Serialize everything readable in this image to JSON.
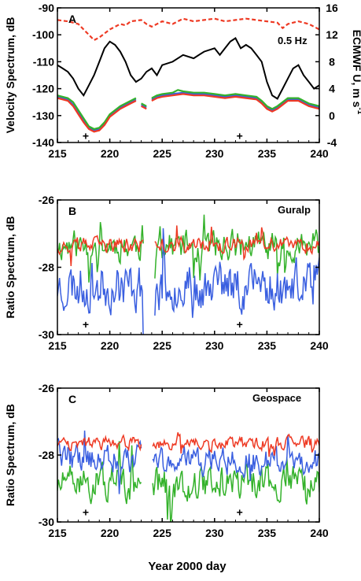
{
  "colors": {
    "red": "#ee3a24",
    "blue": "#3a5fe0",
    "green": "#34b22b",
    "black": "#000000"
  },
  "chart_data": [
    {
      "type": "line",
      "panel": "A",
      "ylabel": "Velocity Spectrum, dB",
      "y2label_main": "ECMWF U, m s",
      "y2label_sup": "-1",
      "annotation": "0.5 Hz",
      "xlim": [
        215,
        240
      ],
      "ylim": [
        -140,
        -90
      ],
      "y2lim": [
        -4,
        16
      ],
      "xticks": [
        215,
        220,
        225,
        230,
        235,
        240
      ],
      "yticks": [
        -140,
        -130,
        -120,
        -110,
        -100,
        -90
      ],
      "y2ticks": [
        -4,
        0,
        4,
        8,
        12,
        16
      ],
      "markers": [
        [
          217.7,
          -137.5
        ],
        [
          232.4,
          -137.5
        ]
      ],
      "marker_glyph": "+",
      "series": [
        {
          "color": "red",
          "dashed": true,
          "axis": "left",
          "x": [
            215,
            216,
            217,
            217.5,
            218,
            218.5,
            219,
            220,
            221,
            221.5,
            222,
            223,
            223.5,
            224,
            225,
            226,
            227,
            228,
            229,
            230,
            231,
            232,
            233,
            234,
            235,
            236,
            236.5,
            237,
            238,
            239,
            240
          ],
          "y": [
            -94.5,
            -95,
            -96,
            -98,
            -100,
            -102,
            -101,
            -98,
            -96,
            -96.5,
            -95,
            -94.5,
            -96,
            -97,
            -95,
            -96,
            -94,
            -95,
            -94.5,
            -94,
            -95,
            -94.5,
            -94,
            -94.5,
            -95,
            -95.5,
            -97.5,
            -96,
            -95,
            -96,
            -98
          ]
        },
        {
          "color": "black",
          "axis": "right",
          "x": [
            215,
            215.5,
            216,
            216.5,
            217,
            217.5,
            218,
            218.5,
            219,
            219.5,
            220,
            220.5,
            221,
            221.5,
            222,
            222.5,
            223,
            223.5,
            224,
            224.5,
            225,
            226,
            227,
            228,
            229,
            230,
            230.5,
            231,
            231.5,
            232,
            232.5,
            233,
            233.5,
            234,
            234.5,
            235,
            235.5,
            236,
            236.5,
            237,
            237.5,
            238,
            238.5,
            239,
            239.5,
            240
          ],
          "y": [
            7.5,
            7,
            6.5,
            5.5,
            4,
            3,
            4.5,
            6,
            8,
            10,
            11,
            10.5,
            9.5,
            8,
            6,
            5,
            5.5,
            6.5,
            7,
            6,
            7.5,
            8,
            9,
            8.5,
            9.5,
            10,
            9,
            10,
            11,
            11.5,
            10,
            10.5,
            10,
            9,
            8,
            5,
            3,
            2.5,
            4,
            5.5,
            7,
            7.5,
            6,
            5,
            4,
            4.5
          ]
        },
        {
          "color": "blue",
          "axis": "left",
          "x": [
            215,
            216,
            216.5,
            217,
            217.5,
            218,
            218.5,
            219,
            219.5,
            220,
            221,
            222,
            222.5,
            null,
            223,
            223.5,
            null,
            224,
            224.5,
            225,
            226,
            227,
            228,
            229,
            230,
            231,
            232,
            233,
            234,
            234.5,
            235,
            235.5,
            236,
            237,
            238,
            239,
            240
          ],
          "y": [
            -123,
            -124,
            -126,
            -129,
            -132,
            -134.5,
            -135.5,
            -135,
            -133,
            -130,
            -127,
            -125,
            -124,
            null,
            -126,
            -127,
            null,
            -124,
            -123,
            -122.5,
            -122,
            -121.5,
            -122,
            -122,
            -122.5,
            -123,
            -122.5,
            -123,
            -123.5,
            -125,
            -127,
            -128,
            -127,
            -124,
            -124,
            -126,
            -127
          ]
        },
        {
          "color": "green",
          "axis": "left",
          "x": [
            215,
            216,
            216.5,
            217,
            217.5,
            218,
            218.5,
            219,
            219.5,
            220,
            221,
            222,
            222.5,
            null,
            223,
            223.5,
            null,
            224,
            224.5,
            225,
            226,
            226.5,
            227,
            228,
            229,
            230,
            231,
            232,
            233,
            234,
            234.5,
            235,
            235.5,
            236,
            237,
            238,
            239,
            240
          ],
          "y": [
            -122.5,
            -123.5,
            -125,
            -128,
            -131,
            -134,
            -135,
            -134.5,
            -132.5,
            -129.5,
            -126.5,
            -124.5,
            -123.5,
            null,
            -125.5,
            -126.5,
            null,
            -123.5,
            -122.5,
            -122,
            -121.5,
            -120.5,
            -121,
            -121.5,
            -121.5,
            -122,
            -122.5,
            -122,
            -122.5,
            -123,
            -124.5,
            -126.5,
            -127.5,
            -126.5,
            -123.5,
            -123.5,
            -125.5,
            -126.5
          ]
        },
        {
          "color": "red",
          "axis": "left",
          "x": [
            215,
            216,
            216.5,
            217,
            217.5,
            218,
            218.5,
            219,
            219.5,
            220,
            221,
            222,
            222.5,
            null,
            223,
            223.5,
            null,
            224,
            224.5,
            225,
            226,
            227,
            228,
            229,
            230,
            231,
            232,
            233,
            234,
            234.5,
            235,
            235.5,
            236,
            237,
            238,
            239,
            240
          ],
          "y": [
            -123.5,
            -124.5,
            -126.5,
            -129.5,
            -132.5,
            -135,
            -136,
            -135.5,
            -133.5,
            -130.5,
            -127.5,
            -125.5,
            -124.5,
            null,
            -126.5,
            -127.5,
            null,
            -124.5,
            -123.5,
            -123,
            -122.5,
            -122,
            -122.5,
            -122.5,
            -123,
            -123.5,
            -123,
            -123.5,
            -124,
            -125.5,
            -127.5,
            -128.5,
            -127.5,
            -124.5,
            -124.5,
            -126.5,
            -127.5
          ]
        }
      ]
    },
    {
      "type": "line",
      "panel": "B",
      "ylabel": "Ratio Spectrum, dB",
      "annotation": "Guralp",
      "xlim": [
        215,
        240
      ],
      "ylim": [
        -30,
        -26
      ],
      "xticks": [
        215,
        220,
        225,
        230,
        235,
        240
      ],
      "yticks": [
        -30,
        -28,
        -26
      ],
      "markers": [
        [
          217.7,
          -29.7
        ],
        [
          232.4,
          -29.7
        ]
      ],
      "marker_glyph": "+",
      "gap": [
        223.2,
        224.2
      ],
      "series": [
        {
          "color": "green",
          "kind": "noise",
          "base": -27.35,
          "amp": 0.7,
          "seed": 11
        },
        {
          "color": "blue",
          "kind": "noise",
          "base": -28.55,
          "amp": 1.1,
          "seed": 23
        },
        {
          "color": "red",
          "kind": "noise",
          "base": -27.35,
          "amp": 0.35,
          "seed": 37
        }
      ]
    },
    {
      "type": "line",
      "panel": "C",
      "ylabel": "Ratio Spectrum, dB",
      "annotation": "Geospace",
      "xlim": [
        215,
        240
      ],
      "ylim": [
        -30,
        -26
      ],
      "xticks": [
        215,
        220,
        225,
        230,
        235,
        240
      ],
      "yticks": [
        -30,
        -28,
        -26
      ],
      "markers": [
        [
          217.7,
          -29.7
        ],
        [
          232.4,
          -29.7
        ]
      ],
      "marker_glyph": "+",
      "gap": [
        223.0,
        224.0
      ],
      "series": [
        {
          "color": "green",
          "kind": "noise",
          "base": -28.85,
          "amp": 0.8,
          "seed": 51
        },
        {
          "color": "blue",
          "kind": "noise",
          "base": -28.15,
          "amp": 0.65,
          "seed": 63
        },
        {
          "color": "red",
          "kind": "noise",
          "base": -27.65,
          "amp": 0.3,
          "seed": 77
        }
      ]
    }
  ],
  "xlabel": "Year 2000 day"
}
